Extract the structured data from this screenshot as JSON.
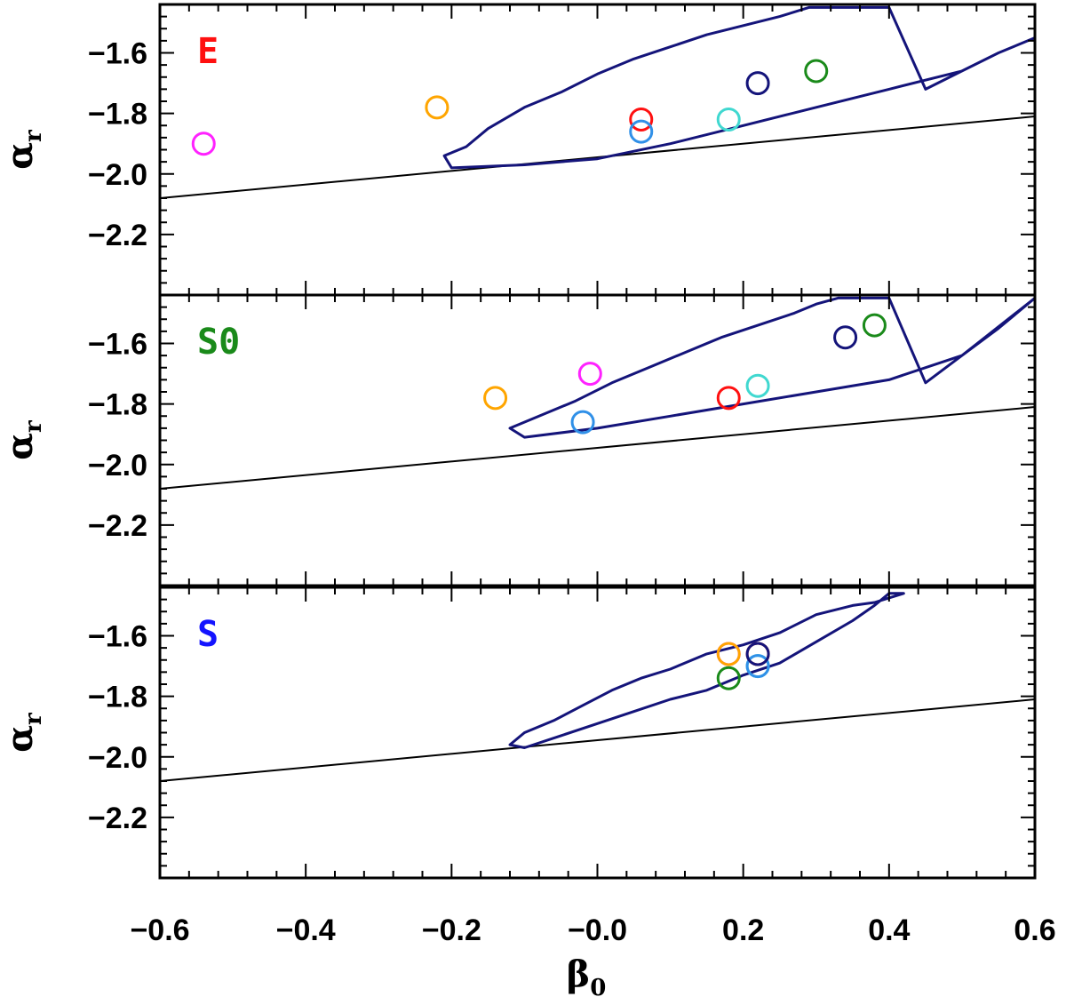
{
  "chart_data": {
    "type": "scatter",
    "x_label": {
      "symbol": "β",
      "subscript": "0"
    },
    "y_label": {
      "symbol": "α",
      "subscript": "r"
    },
    "xlim": [
      -0.6,
      0.6
    ],
    "ylim": [
      -2.4,
      -1.44
    ],
    "x_ticks": [
      -0.6,
      -0.4,
      -0.2,
      0.0,
      0.2,
      0.4,
      0.6
    ],
    "x_tick_labels": [
      "−0.6",
      "−0.4",
      "−0.2",
      "−0.0",
      "0.2",
      "0.4",
      "0.6"
    ],
    "y_ticks": [
      -1.6,
      -1.8,
      -2.0,
      -2.2
    ],
    "y_tick_labels": [
      "−1.6",
      "−1.8",
      "−2.0",
      "−2.2"
    ],
    "reference_line": {
      "x": [
        -0.6,
        0.6
      ],
      "y": [
        -2.08,
        -1.81
      ]
    },
    "colors": {
      "contour": "#14147a",
      "line": "#000000",
      "E": "#ff1010",
      "S0": "#1a8a1a",
      "S": "#1414ff"
    },
    "panels": [
      {
        "label": "E",
        "label_color": "#ff1010",
        "contour": [
          [
            -0.21,
            -1.94
          ],
          [
            -0.18,
            -1.91
          ],
          [
            -0.15,
            -1.85
          ],
          [
            -0.1,
            -1.78
          ],
          [
            -0.05,
            -1.73
          ],
          [
            0.0,
            -1.67
          ],
          [
            0.05,
            -1.62
          ],
          [
            0.1,
            -1.58
          ],
          [
            0.15,
            -1.54
          ],
          [
            0.2,
            -1.51
          ],
          [
            0.25,
            -1.48
          ],
          [
            0.29,
            -1.45
          ],
          [
            0.4,
            -1.45
          ],
          [
            0.45,
            -1.72
          ],
          [
            0.5,
            -1.66
          ],
          [
            0.55,
            -1.6
          ],
          [
            0.6,
            -1.55
          ],
          [
            0.55,
            -1.6
          ],
          [
            0.5,
            -1.66
          ],
          [
            0.4,
            -1.72
          ],
          [
            0.3,
            -1.78
          ],
          [
            0.2,
            -1.84
          ],
          [
            0.1,
            -1.9
          ],
          [
            0.0,
            -1.95
          ],
          [
            -0.1,
            -1.97
          ],
          [
            -0.2,
            -1.98
          ],
          [
            -0.21,
            -1.94
          ]
        ],
        "points": [
          {
            "x": -0.54,
            "y": -1.9,
            "color": "#ff22ff"
          },
          {
            "x": -0.22,
            "y": -1.78,
            "color": "#ffa500"
          },
          {
            "x": 0.06,
            "y": -1.82,
            "color": "#ff1010"
          },
          {
            "x": 0.06,
            "y": -1.86,
            "color": "#3090e8"
          },
          {
            "x": 0.18,
            "y": -1.82,
            "color": "#40d8d0"
          },
          {
            "x": 0.22,
            "y": -1.7,
            "color": "#14147a"
          },
          {
            "x": 0.3,
            "y": -1.66,
            "color": "#1a8a1a"
          }
        ]
      },
      {
        "label": "S0",
        "label_color": "#1a8a1a",
        "contour": [
          [
            -0.12,
            -1.88
          ],
          [
            -0.08,
            -1.84
          ],
          [
            -0.03,
            -1.79
          ],
          [
            0.02,
            -1.73
          ],
          [
            0.07,
            -1.68
          ],
          [
            0.12,
            -1.63
          ],
          [
            0.17,
            -1.58
          ],
          [
            0.22,
            -1.54
          ],
          [
            0.27,
            -1.5
          ],
          [
            0.3,
            -1.47
          ],
          [
            0.33,
            -1.45
          ],
          [
            0.4,
            -1.45
          ],
          [
            0.45,
            -1.73
          ],
          [
            0.5,
            -1.64
          ],
          [
            0.55,
            -1.55
          ],
          [
            0.6,
            -1.45
          ],
          [
            0.5,
            -1.64
          ],
          [
            0.4,
            -1.72
          ],
          [
            0.3,
            -1.76
          ],
          [
            0.2,
            -1.8
          ],
          [
            0.1,
            -1.84
          ],
          [
            0.0,
            -1.88
          ],
          [
            -0.1,
            -1.91
          ],
          [
            -0.12,
            -1.88
          ]
        ],
        "points": [
          {
            "x": -0.14,
            "y": -1.78,
            "color": "#ffa500"
          },
          {
            "x": -0.02,
            "y": -1.86,
            "color": "#3090e8"
          },
          {
            "x": -0.01,
            "y": -1.7,
            "color": "#ff22ff"
          },
          {
            "x": 0.18,
            "y": -1.78,
            "color": "#ff1010"
          },
          {
            "x": 0.22,
            "y": -1.74,
            "color": "#40d8d0"
          },
          {
            "x": 0.34,
            "y": -1.58,
            "color": "#14147a"
          },
          {
            "x": 0.38,
            "y": -1.54,
            "color": "#1a8a1a"
          }
        ]
      },
      {
        "label": "S",
        "label_color": "#1414ff",
        "contour": [
          [
            -0.12,
            -1.96
          ],
          [
            -0.1,
            -1.92
          ],
          [
            -0.06,
            -1.88
          ],
          [
            -0.02,
            -1.83
          ],
          [
            0.02,
            -1.78
          ],
          [
            0.06,
            -1.74
          ],
          [
            0.1,
            -1.71
          ],
          [
            0.15,
            -1.66
          ],
          [
            0.2,
            -1.63
          ],
          [
            0.25,
            -1.59
          ],
          [
            0.3,
            -1.53
          ],
          [
            0.35,
            -1.5
          ],
          [
            0.38,
            -1.49
          ],
          [
            0.42,
            -1.46
          ],
          [
            0.4,
            -1.46
          ],
          [
            0.38,
            -1.5
          ],
          [
            0.35,
            -1.55
          ],
          [
            0.3,
            -1.62
          ],
          [
            0.25,
            -1.69
          ],
          [
            0.2,
            -1.73
          ],
          [
            0.15,
            -1.78
          ],
          [
            0.1,
            -1.81
          ],
          [
            0.05,
            -1.85
          ],
          [
            0.0,
            -1.89
          ],
          [
            -0.05,
            -1.93
          ],
          [
            -0.1,
            -1.97
          ],
          [
            -0.12,
            -1.96
          ]
        ],
        "points": [
          {
            "x": 0.18,
            "y": -1.66,
            "color": "#ff22ff"
          },
          {
            "x": 0.18,
            "y": -1.66,
            "color": "#ffa500"
          },
          {
            "x": 0.18,
            "y": -1.74,
            "color": "#1a8a1a"
          },
          {
            "x": 0.22,
            "y": -1.66,
            "color": "#ff1010"
          },
          {
            "x": 0.22,
            "y": -1.7,
            "color": "#40d8d0"
          },
          {
            "x": 0.22,
            "y": -1.7,
            "color": "#3090e8"
          },
          {
            "x": 0.22,
            "y": -1.66,
            "color": "#14147a"
          }
        ]
      }
    ]
  }
}
